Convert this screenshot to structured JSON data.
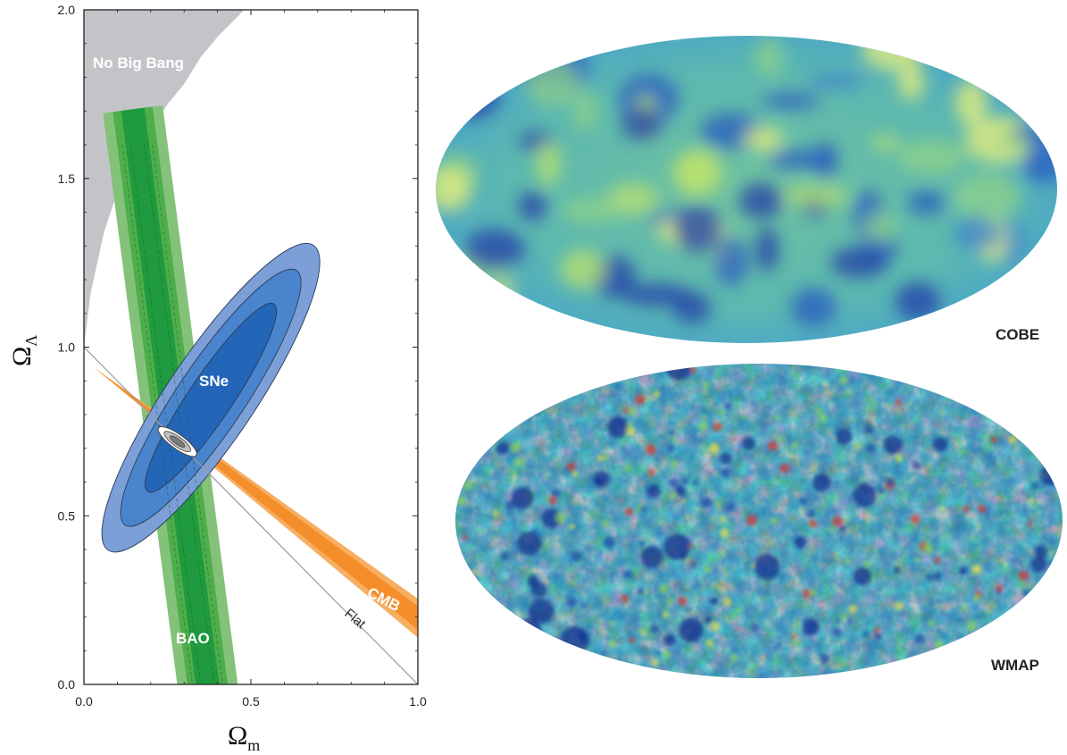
{
  "chart_data": {
    "type": "contour",
    "xlabel": "Ω",
    "xlabel_sub": "m",
    "ylabel": "Ω",
    "ylabel_sub": "Λ",
    "xlim": [
      0,
      1.0
    ],
    "ylim": [
      0,
      2.0
    ],
    "xticks": [
      "0.0",
      "0.5",
      "1.0"
    ],
    "yticks": [
      "0.0",
      "0.5",
      "1.0",
      "1.5",
      "2.0"
    ],
    "grid": false,
    "regions": {
      "no_big_bang": {
        "label": "No Big Bang",
        "color": "#c4c4c8",
        "boundary": [
          [
            0.0,
            1.0
          ],
          [
            0.02,
            1.16
          ],
          [
            0.06,
            1.34
          ],
          [
            0.1,
            1.46
          ],
          [
            0.15,
            1.56
          ],
          [
            0.2,
            1.64
          ],
          [
            0.25,
            1.72
          ],
          [
            0.3,
            1.78
          ],
          [
            0.35,
            1.86
          ],
          [
            0.4,
            1.92
          ],
          [
            0.45,
            1.97
          ],
          [
            0.48,
            2.0
          ]
        ]
      },
      "sne": {
        "label": "SNe",
        "colors": [
          "#7b9fd6",
          "#4a84cc",
          "#2366b8"
        ],
        "center": [
          0.38,
          0.85
        ],
        "angle_deg": 56,
        "semi_major": [
          0.545,
          0.455,
          0.335
        ],
        "semi_minor": [
          0.13,
          0.1,
          0.065
        ]
      },
      "bao": {
        "label": "BAO",
        "colors": [
          "#84c27a",
          "#4fae4c",
          "#1f9a3e"
        ],
        "centerline": [
          [
            0.16,
            1.6
          ],
          [
            0.37,
            0.0
          ]
        ],
        "half_width": [
          0.09,
          0.06,
          0.035
        ]
      },
      "cmb": {
        "label": "CMB",
        "colors": [
          "#f7ae62",
          "#f48e2a"
        ],
        "centerline": [
          [
            0.03,
            0.94
          ],
          [
            1.0,
            0.2
          ]
        ],
        "half_width": [
          0.05,
          0.03
        ]
      },
      "flat": {
        "label": "Flat",
        "line": [
          [
            0.0,
            1.0
          ],
          [
            1.0,
            0.0
          ]
        ]
      },
      "combined": {
        "center": [
          0.28,
          0.72
        ],
        "angle_deg": -36
      }
    },
    "sky_maps": [
      {
        "label": "COBE"
      },
      {
        "label": "WMAP"
      }
    ]
  }
}
